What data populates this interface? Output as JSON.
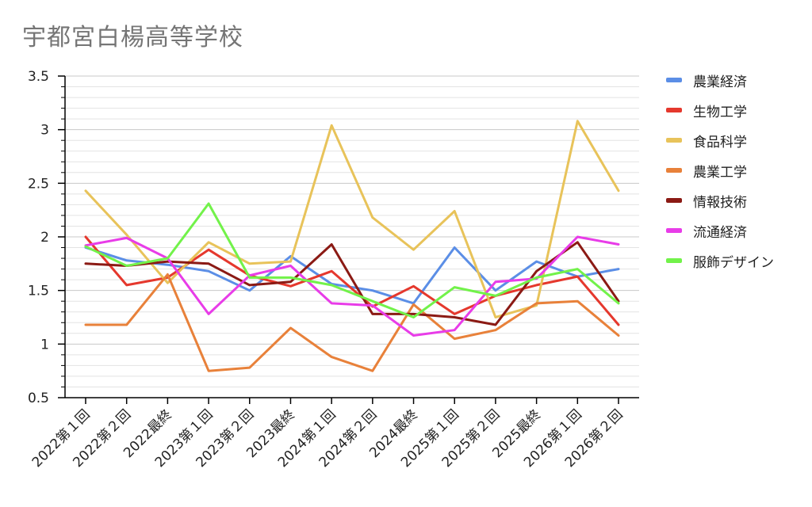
{
  "chart_data": {
    "type": "line",
    "title": "宇都宮白楊高等学校",
    "xlabel": "",
    "ylabel": "",
    "ylim": [
      0.5,
      3.5
    ],
    "yticks": [
      "0.5",
      "1",
      "1.5",
      "2",
      "2.5",
      "3",
      "3.5"
    ],
    "grid": true,
    "legend_position": "right",
    "categories": [
      "2022第１回",
      "2022第２回",
      "2022最終",
      "2023第１回",
      "2023第２回",
      "2023最終",
      "2024第１回",
      "2024第２回",
      "2024最終",
      "2025第１回",
      "2025第２回",
      "2025最終",
      "2026第１回",
      "2026第２回"
    ],
    "series": [
      {
        "name": "農業経済",
        "color": "#5b8ee6",
        "values": [
          1.9,
          1.78,
          1.74,
          1.68,
          1.5,
          1.82,
          1.56,
          1.5,
          1.38,
          1.9,
          1.5,
          1.77,
          1.63,
          1.7
        ]
      },
      {
        "name": "生物工学",
        "color": "#e5382d",
        "values": [
          2.0,
          1.55,
          1.62,
          1.88,
          1.64,
          1.54,
          1.68,
          1.35,
          1.54,
          1.28,
          1.45,
          1.55,
          1.63,
          1.18
        ]
      },
      {
        "name": "食品科学",
        "color": "#e8c35a",
        "values": [
          2.43,
          2.02,
          1.57,
          1.95,
          1.75,
          1.77,
          3.04,
          2.18,
          1.88,
          2.24,
          1.25,
          1.36,
          3.08,
          2.43
        ]
      },
      {
        "name": "農業工学",
        "color": "#e8813a",
        "values": [
          1.18,
          1.18,
          1.65,
          0.75,
          0.78,
          1.15,
          0.88,
          0.75,
          1.37,
          1.05,
          1.13,
          1.38,
          1.4,
          1.08
        ]
      },
      {
        "name": "情報技術",
        "color": "#8b1a14",
        "values": [
          1.75,
          1.73,
          1.77,
          1.75,
          1.55,
          1.58,
          1.93,
          1.28,
          1.28,
          1.25,
          1.18,
          1.68,
          1.95,
          1.4
        ]
      },
      {
        "name": "流通経済",
        "color": "#e83ce8",
        "values": [
          1.92,
          1.99,
          1.8,
          1.28,
          1.64,
          1.73,
          1.38,
          1.36,
          1.08,
          1.13,
          1.58,
          1.61,
          2.0,
          1.93
        ]
      },
      {
        "name": "服飾デザイン",
        "color": "#72f24a",
        "values": [
          1.91,
          1.73,
          1.8,
          2.31,
          1.62,
          1.62,
          1.55,
          1.4,
          1.25,
          1.53,
          1.45,
          1.62,
          1.7,
          1.38
        ]
      }
    ]
  }
}
